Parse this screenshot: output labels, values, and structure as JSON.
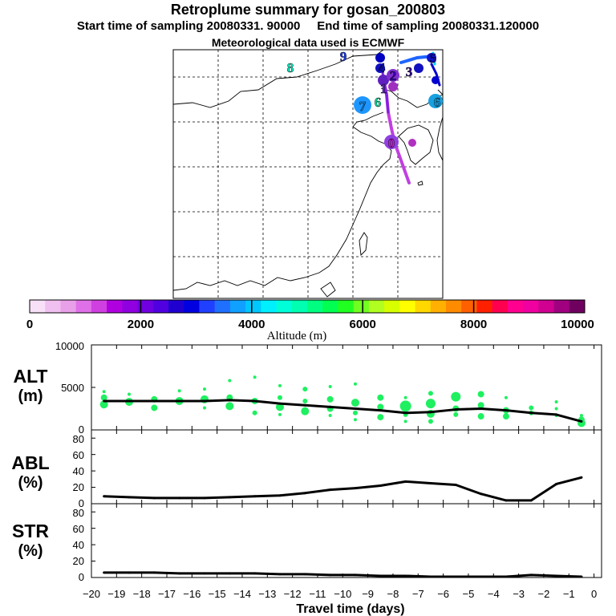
{
  "header": {
    "title": "Retroplume summary for gosan_200803",
    "start_label": "Start time of sampling 20080331. 90000",
    "end_label": "End time of sampling 20080331.120000",
    "met_label": "Meteorological data used is ECMWF"
  },
  "map": {
    "plume_labels": [
      {
        "text": "8",
        "color": "#00ffd0"
      },
      {
        "text": "9",
        "color": "#1a3cff"
      },
      {
        "text": "7",
        "color": "#1e96ff"
      },
      {
        "text": "6",
        "color": "#00f0a0"
      },
      {
        "text": "6",
        "color": "#19a0e0"
      },
      {
        "text": "0",
        "color": "#d020d0"
      },
      {
        "text": "1",
        "color": "#6020e0"
      },
      {
        "text": "2",
        "color": "#4000c0"
      },
      {
        "text": "3",
        "color": "#3000a0"
      },
      {
        "text": "4",
        "color": "#1010d0"
      },
      {
        "text": "5",
        "color": "#1010c0"
      }
    ]
  },
  "colorbar": {
    "tick_labels": [
      "0",
      "2000",
      "4000",
      "6000",
      "8000",
      "10000"
    ],
    "axis_label": "Altitude (m)",
    "colors": [
      "#f8e0f8",
      "#f0c0f0",
      "#e8a0e8",
      "#e070e8",
      "#d040e0",
      "#b000e0",
      "#9000e0",
      "#7000e0",
      "#5000e0",
      "#2000d0",
      "#0000e0",
      "#2040ff",
      "#2070ff",
      "#10a0ff",
      "#00c8ff",
      "#00f0ff",
      "#00ffd8",
      "#00ffb0",
      "#00ff80",
      "#00ff50",
      "#20ff20",
      "#70ff20",
      "#b0ff20",
      "#d8ff00",
      "#ffff00",
      "#ffd800",
      "#ffb000",
      "#ff8c00",
      "#ff6000",
      "#ff2000",
      "#ff0050",
      "#ff0090",
      "#f000a0",
      "#d00090",
      "#a00080",
      "#700060"
    ]
  },
  "chart_data": [
    {
      "type": "line",
      "name": "ALT",
      "ylabel": "ALT",
      "yunit": "(m)",
      "ylim": [
        0,
        10000
      ],
      "yticks": [
        "0",
        "5000",
        "10000"
      ],
      "x": [
        -19.5,
        -18.5,
        -17.5,
        -16.5,
        -15.5,
        -14.5,
        -13.5,
        -12.5,
        -11.5,
        -10.5,
        -9.5,
        -8.5,
        -7.5,
        -6.5,
        -5.5,
        -4.5,
        -3.5,
        -2.5,
        -1.5,
        -0.5
      ],
      "values": [
        3400,
        3400,
        3400,
        3400,
        3400,
        3500,
        3400,
        3100,
        2900,
        2700,
        2500,
        2300,
        2000,
        2100,
        2400,
        2500,
        2300,
        2000,
        1800,
        1000
      ],
      "scatter_points": [
        {
          "x": -19.5,
          "y": 3800,
          "s": 4
        },
        {
          "x": -19.5,
          "y": 3000,
          "s": 5
        },
        {
          "x": -19.5,
          "y": 4500,
          "s": 2
        },
        {
          "x": -18.5,
          "y": 3300,
          "s": 5
        },
        {
          "x": -18.5,
          "y": 4200,
          "s": 2
        },
        {
          "x": -17.5,
          "y": 3600,
          "s": 4
        },
        {
          "x": -17.5,
          "y": 2600,
          "s": 4
        },
        {
          "x": -16.5,
          "y": 3400,
          "s": 5
        },
        {
          "x": -16.5,
          "y": 4600,
          "s": 2
        },
        {
          "x": -15.5,
          "y": 3600,
          "s": 5
        },
        {
          "x": -15.5,
          "y": 2600,
          "s": 2
        },
        {
          "x": -15.5,
          "y": 4800,
          "s": 2
        },
        {
          "x": -14.5,
          "y": 3800,
          "s": 4
        },
        {
          "x": -14.5,
          "y": 2800,
          "s": 5
        },
        {
          "x": -14.5,
          "y": 5800,
          "s": 2
        },
        {
          "x": -13.5,
          "y": 3400,
          "s": 4
        },
        {
          "x": -13.5,
          "y": 2000,
          "s": 3
        },
        {
          "x": -13.5,
          "y": 6200,
          "s": 2
        },
        {
          "x": -12.5,
          "y": 2700,
          "s": 5
        },
        {
          "x": -12.5,
          "y": 3800,
          "s": 3
        },
        {
          "x": -12.5,
          "y": 5200,
          "s": 2
        },
        {
          "x": -12.5,
          "y": 1800,
          "s": 2
        },
        {
          "x": -11.5,
          "y": 2200,
          "s": 5
        },
        {
          "x": -11.5,
          "y": 3400,
          "s": 3
        },
        {
          "x": -11.5,
          "y": 4800,
          "s": 3
        },
        {
          "x": -10.5,
          "y": 3600,
          "s": 4
        },
        {
          "x": -10.5,
          "y": 2500,
          "s": 4
        },
        {
          "x": -10.5,
          "y": 5100,
          "s": 2
        },
        {
          "x": -10.5,
          "y": 1700,
          "s": 2
        },
        {
          "x": -9.5,
          "y": 3200,
          "s": 5
        },
        {
          "x": -9.5,
          "y": 2000,
          "s": 3
        },
        {
          "x": -9.5,
          "y": 5400,
          "s": 2
        },
        {
          "x": -9.5,
          "y": 1200,
          "s": 2
        },
        {
          "x": -8.5,
          "y": 3800,
          "s": 4
        },
        {
          "x": -8.5,
          "y": 2700,
          "s": 4
        },
        {
          "x": -8.5,
          "y": 1500,
          "s": 4
        },
        {
          "x": -7.5,
          "y": 2800,
          "s": 7
        },
        {
          "x": -7.5,
          "y": 1800,
          "s": 3
        },
        {
          "x": -7.5,
          "y": 3800,
          "s": 2
        },
        {
          "x": -7.5,
          "y": 1000,
          "s": 2
        },
        {
          "x": -6.5,
          "y": 3100,
          "s": 6
        },
        {
          "x": -6.5,
          "y": 1900,
          "s": 5
        },
        {
          "x": -6.5,
          "y": 4300,
          "s": 3
        },
        {
          "x": -6.5,
          "y": 1000,
          "s": 3
        },
        {
          "x": -5.5,
          "y": 2500,
          "s": 4
        },
        {
          "x": -5.5,
          "y": 1800,
          "s": 3
        },
        {
          "x": -5.5,
          "y": 3900,
          "s": 6
        },
        {
          "x": -4.5,
          "y": 2900,
          "s": 4
        },
        {
          "x": -4.5,
          "y": 4200,
          "s": 4
        },
        {
          "x": -4.5,
          "y": 1600,
          "s": 4
        },
        {
          "x": -3.5,
          "y": 2300,
          "s": 4
        },
        {
          "x": -3.5,
          "y": 1600,
          "s": 4
        },
        {
          "x": -3.5,
          "y": 3800,
          "s": 2
        },
        {
          "x": -2.5,
          "y": 2600,
          "s": 3
        },
        {
          "x": -2.5,
          "y": 2000,
          "s": 3
        },
        {
          "x": -1.5,
          "y": 3300,
          "s": 2
        },
        {
          "x": -1.5,
          "y": 2500,
          "s": 2
        },
        {
          "x": -1.5,
          "y": 1700,
          "s": 2
        },
        {
          "x": -0.5,
          "y": 1200,
          "s": 4
        },
        {
          "x": -0.5,
          "y": 800,
          "s": 5
        },
        {
          "x": -0.5,
          "y": 1700,
          "s": 2
        }
      ]
    },
    {
      "type": "line",
      "name": "ABL",
      "ylabel": "ABL",
      "yunit": "(%)",
      "ylim": [
        0,
        90
      ],
      "yticks": [
        "0",
        "20",
        "40",
        "60",
        "80"
      ],
      "x": [
        -19.5,
        -18.5,
        -17.5,
        -16.5,
        -15.5,
        -14.5,
        -13.5,
        -12.5,
        -11.5,
        -10.5,
        -9.5,
        -8.5,
        -7.5,
        -6.5,
        -5.5,
        -4.5,
        -3.5,
        -2.5,
        -1.5,
        -0.5
      ],
      "values": [
        9,
        8,
        7,
        7,
        7,
        8,
        9,
        10,
        13,
        17,
        19,
        22,
        27,
        25,
        23,
        12,
        4,
        4,
        24,
        32
      ]
    },
    {
      "type": "line",
      "name": "STR",
      "ylabel": "STR",
      "yunit": "(%)",
      "ylim": [
        0,
        90
      ],
      "yticks": [
        "0",
        "20",
        "40",
        "60",
        "80"
      ],
      "xlabel": "Travel time (days)",
      "xticks": [
        "-20",
        "-19",
        "-18",
        "-17",
        "-16",
        "-15",
        "-14",
        "-13",
        "-12",
        "-11",
        "-10",
        "-9",
        "-8",
        "-7",
        "-6",
        "-5",
        "-4",
        "-3",
        "-2",
        "-1",
        "0"
      ],
      "x": [
        -19.5,
        -18.5,
        -17.5,
        -16.5,
        -15.5,
        -14.5,
        -13.5,
        -12.5,
        -11.5,
        -10.5,
        -9.5,
        -8.5,
        -7.5,
        -6.5,
        -5.5,
        -4.5,
        -3.5,
        -2.5,
        -1.5,
        -0.5
      ],
      "values": [
        6,
        6,
        6,
        5,
        5,
        5,
        5,
        4,
        4,
        3,
        3,
        2,
        2,
        1,
        1,
        1,
        1,
        3,
        2,
        1
      ]
    }
  ]
}
